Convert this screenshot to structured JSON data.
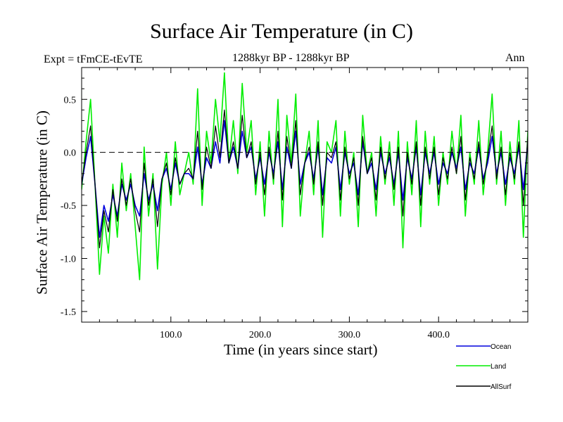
{
  "chart_data": {
    "type": "line",
    "title": "Surface Air Temperature (in C)",
    "experiment_label": "Expt = tFmCE-tEvTE",
    "period_label": "1288kyr BP - 1288kyr BP",
    "season_label": "Ann",
    "xlabel": "Time (in years since start)",
    "ylabel": "Surface Air Temperature (in C)",
    "xlim": [
      0,
      500
    ],
    "ylim": [
      -1.6,
      0.8
    ],
    "xticks": [
      100,
      200,
      300,
      400
    ],
    "xtick_labels": [
      "100.0",
      "200.0",
      "300.0",
      "400.0"
    ],
    "yticks": [
      0.5,
      0.0,
      -0.5,
      -1.0,
      -1.5
    ],
    "ytick_labels": [
      "0.5",
      "0.0",
      "-0.5",
      "-1.0",
      "-1.5"
    ],
    "reference_line": 0.0,
    "series": [
      {
        "name": "Land",
        "color": "#00ee00",
        "x": [
          0,
          5,
          10,
          15,
          20,
          25,
          30,
          35,
          40,
          45,
          50,
          55,
          60,
          65,
          70,
          75,
          80,
          85,
          90,
          95,
          100,
          105,
          110,
          115,
          120,
          125,
          130,
          135,
          140,
          145,
          150,
          155,
          160,
          165,
          170,
          175,
          180,
          185,
          190,
          195,
          200,
          205,
          210,
          215,
          220,
          225,
          230,
          235,
          240,
          245,
          250,
          255,
          260,
          265,
          270,
          275,
          280,
          285,
          290,
          295,
          300,
          305,
          310,
          315,
          320,
          325,
          330,
          335,
          340,
          345,
          350,
          355,
          360,
          365,
          370,
          375,
          380,
          385,
          390,
          395,
          400,
          405,
          410,
          415,
          420,
          425,
          430,
          435,
          440,
          445,
          450,
          455,
          460,
          465,
          470,
          475,
          480,
          485,
          490,
          495,
          500
        ],
        "values": [
          -0.35,
          0.1,
          0.5,
          -0.3,
          -1.15,
          -0.6,
          -0.95,
          -0.3,
          -0.8,
          -0.1,
          -0.55,
          -0.2,
          -0.7,
          -1.2,
          0.05,
          -0.6,
          -0.2,
          -1.1,
          -0.3,
          0.0,
          -0.5,
          0.1,
          -0.4,
          -0.2,
          0.0,
          -0.3,
          0.6,
          -0.5,
          0.2,
          -0.1,
          0.5,
          0.1,
          0.75,
          -0.1,
          0.3,
          -0.2,
          0.65,
          0.0,
          0.3,
          -0.4,
          0.1,
          -0.6,
          0.2,
          -0.3,
          0.5,
          -0.7,
          0.35,
          -0.1,
          0.55,
          -0.6,
          -0.1,
          0.2,
          -0.4,
          0.3,
          -0.8,
          0.1,
          0.0,
          0.3,
          -0.6,
          0.2,
          -0.3,
          0.0,
          -0.7,
          0.35,
          -0.2,
          0.0,
          -0.6,
          0.15,
          -0.3,
          0.1,
          -0.5,
          0.2,
          -0.9,
          0.1,
          -0.4,
          0.3,
          -0.7,
          0.2,
          -0.3,
          0.15,
          -0.5,
          0.0,
          -0.3,
          0.2,
          -0.2,
          0.35,
          -0.6,
          0.0,
          -0.3,
          0.3,
          -0.4,
          0.0,
          0.55,
          -0.3,
          0.2,
          -0.5,
          0.1,
          -0.3,
          0.3,
          -0.8,
          0.2
        ]
      },
      {
        "name": "Ocean",
        "color": "#0000dd",
        "x": [
          0,
          5,
          10,
          15,
          20,
          25,
          30,
          35,
          40,
          45,
          50,
          55,
          60,
          65,
          70,
          75,
          80,
          85,
          90,
          95,
          100,
          105,
          110,
          115,
          120,
          125,
          130,
          135,
          140,
          145,
          150,
          155,
          160,
          165,
          170,
          175,
          180,
          185,
          190,
          195,
          200,
          205,
          210,
          215,
          220,
          225,
          230,
          235,
          240,
          245,
          250,
          255,
          260,
          265,
          270,
          275,
          280,
          285,
          290,
          295,
          300,
          305,
          310,
          315,
          320,
          325,
          330,
          335,
          340,
          345,
          350,
          355,
          360,
          365,
          370,
          375,
          380,
          385,
          390,
          395,
          400,
          405,
          410,
          415,
          420,
          425,
          430,
          435,
          440,
          445,
          450,
          455,
          460,
          465,
          470,
          475,
          480,
          485,
          490,
          495,
          500
        ],
        "values": [
          -0.3,
          -0.05,
          0.15,
          -0.3,
          -0.8,
          -0.5,
          -0.65,
          -0.4,
          -0.6,
          -0.3,
          -0.45,
          -0.3,
          -0.5,
          -0.6,
          -0.2,
          -0.45,
          -0.3,
          -0.55,
          -0.25,
          -0.15,
          -0.35,
          -0.1,
          -0.3,
          -0.2,
          -0.2,
          -0.25,
          0.05,
          -0.3,
          -0.05,
          -0.15,
          0.1,
          -0.1,
          0.3,
          -0.1,
          0.05,
          -0.15,
          0.2,
          -0.05,
          0.05,
          -0.25,
          -0.05,
          -0.3,
          0.0,
          -0.2,
          0.1,
          -0.35,
          0.05,
          -0.15,
          0.2,
          -0.3,
          -0.1,
          0.0,
          -0.25,
          0.05,
          -0.4,
          -0.05,
          -0.1,
          0.05,
          -0.35,
          0.0,
          -0.2,
          -0.1,
          -0.4,
          0.1,
          -0.2,
          -0.1,
          -0.35,
          0.0,
          -0.2,
          -0.05,
          -0.3,
          0.0,
          -0.45,
          -0.05,
          -0.25,
          0.05,
          -0.4,
          0.0,
          -0.2,
          0.0,
          -0.3,
          -0.1,
          -0.2,
          0.0,
          -0.15,
          0.05,
          -0.35,
          -0.1,
          -0.2,
          0.05,
          -0.25,
          -0.1,
          0.15,
          -0.2,
          0.0,
          -0.3,
          -0.05,
          -0.2,
          0.05,
          -0.35,
          0.1
        ]
      },
      {
        "name": "AllSurf",
        "color": "#000000",
        "x": [
          0,
          5,
          10,
          15,
          20,
          25,
          30,
          35,
          40,
          45,
          50,
          55,
          60,
          65,
          70,
          75,
          80,
          85,
          90,
          95,
          100,
          105,
          110,
          115,
          120,
          125,
          130,
          135,
          140,
          145,
          150,
          155,
          160,
          165,
          170,
          175,
          180,
          185,
          190,
          195,
          200,
          205,
          210,
          215,
          220,
          225,
          230,
          235,
          240,
          245,
          250,
          255,
          260,
          265,
          270,
          275,
          280,
          285,
          290,
          295,
          300,
          305,
          310,
          315,
          320,
          325,
          330,
          335,
          340,
          345,
          350,
          355,
          360,
          365,
          370,
          375,
          380,
          385,
          390,
          395,
          400,
          405,
          410,
          415,
          420,
          425,
          430,
          435,
          440,
          445,
          450,
          455,
          460,
          465,
          470,
          475,
          480,
          485,
          490,
          495,
          500
        ],
        "values": [
          -0.3,
          0.0,
          0.25,
          -0.3,
          -0.9,
          -0.55,
          -0.75,
          -0.35,
          -0.65,
          -0.25,
          -0.5,
          -0.25,
          -0.55,
          -0.75,
          -0.1,
          -0.5,
          -0.25,
          -0.7,
          -0.25,
          -0.1,
          -0.4,
          -0.05,
          -0.3,
          -0.2,
          -0.15,
          -0.25,
          0.2,
          -0.35,
          0.05,
          -0.15,
          0.25,
          -0.05,
          0.4,
          -0.1,
          0.1,
          -0.15,
          0.35,
          -0.05,
          0.1,
          -0.3,
          0.0,
          -0.4,
          0.05,
          -0.25,
          0.2,
          -0.45,
          0.15,
          -0.15,
          0.3,
          -0.4,
          -0.1,
          0.05,
          -0.3,
          0.1,
          -0.5,
          0.0,
          -0.05,
          0.1,
          -0.45,
          0.05,
          -0.25,
          -0.05,
          -0.5,
          0.15,
          -0.2,
          -0.05,
          -0.45,
          0.05,
          -0.25,
          0.0,
          -0.35,
          0.05,
          -0.6,
          0.0,
          -0.3,
          0.1,
          -0.5,
          0.05,
          -0.25,
          0.05,
          -0.4,
          -0.05,
          -0.25,
          0.05,
          -0.2,
          0.15,
          -0.45,
          -0.05,
          -0.25,
          0.1,
          -0.3,
          -0.05,
          0.25,
          -0.25,
          0.05,
          -0.4,
          0.0,
          -0.25,
          0.1,
          -0.5,
          0.15
        ]
      }
    ],
    "legend": [
      "Ocean",
      "Land",
      "AllSurf"
    ],
    "legend_position": "bottom-right"
  }
}
